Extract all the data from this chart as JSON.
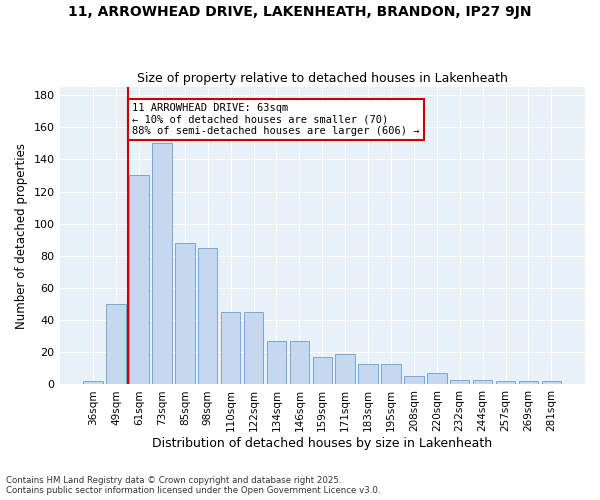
{
  "title": "11, ARROWHEAD DRIVE, LAKENHEATH, BRANDON, IP27 9JN",
  "subtitle": "Size of property relative to detached houses in Lakenheath",
  "xlabel": "Distribution of detached houses by size in Lakenheath",
  "ylabel": "Number of detached properties",
  "categories": [
    "36sqm",
    "49sqm",
    "61sqm",
    "73sqm",
    "85sqm",
    "98sqm",
    "110sqm",
    "122sqm",
    "134sqm",
    "146sqm",
    "159sqm",
    "171sqm",
    "183sqm",
    "195sqm",
    "208sqm",
    "220sqm",
    "232sqm",
    "244sqm",
    "257sqm",
    "269sqm",
    "281sqm"
  ],
  "values": [
    2,
    50,
    130,
    150,
    88,
    85,
    45,
    45,
    27,
    27,
    17,
    19,
    13,
    13,
    5,
    7,
    3,
    3,
    2,
    2,
    2
  ],
  "bar_color": "#c5d8ef",
  "bar_edge_color": "#7aa8d4",
  "redline_category_index": 2,
  "annotation_line1": "11 ARROWHEAD DRIVE: 63sqm",
  "annotation_line2": "← 10% of detached houses are smaller (70)",
  "annotation_line3": "88% of semi-detached houses are larger (606) →",
  "annotation_box_color": "#ffffff",
  "annotation_box_edge": "#cc0000",
  "ylim": [
    0,
    185
  ],
  "yticks": [
    0,
    20,
    40,
    60,
    80,
    100,
    120,
    140,
    160,
    180
  ],
  "footer_line1": "Contains HM Land Registry data © Crown copyright and database right 2025.",
  "footer_line2": "Contains public sector information licensed under the Open Government Licence v3.0.",
  "fig_bg_color": "#ffffff",
  "plot_bg": "#e8f0f8",
  "grid_color": "#ffffff",
  "title_fontsize": 10,
  "subtitle_fontsize": 9
}
